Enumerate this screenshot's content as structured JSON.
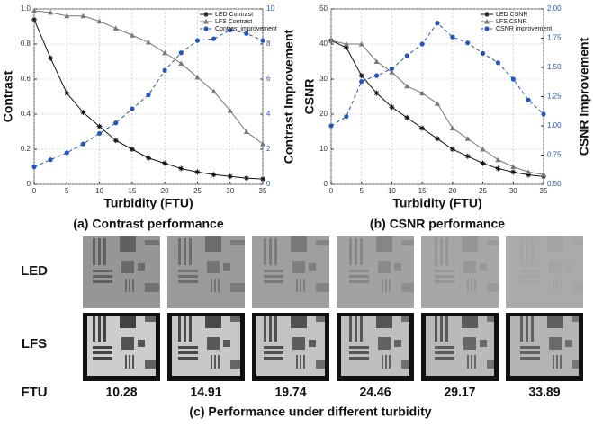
{
  "chart_data": [
    {
      "type": "line",
      "caption": "(a) Contrast performance",
      "x_label": "Turbidity (FTU)",
      "y_label": "Contrast",
      "y2_label": "Contrast Improvement",
      "xlim": [
        0,
        35
      ],
      "xticks": [
        0,
        5,
        10,
        15,
        20,
        25,
        30,
        35
      ],
      "ylim": [
        0,
        1
      ],
      "yticks": [
        0,
        0.2,
        0.4,
        0.6,
        0.8,
        {
          "value": 1,
          "label": "1.0"
        }
      ],
      "y2lim": [
        0,
        10
      ],
      "y2ticks": [
        0,
        2,
        4,
        6,
        8,
        10
      ],
      "grid": true,
      "legend": "top-right",
      "x": [
        0,
        2.5,
        5,
        7.5,
        10,
        12.5,
        15,
        17.5,
        20,
        22.5,
        25,
        27.5,
        30,
        32.5,
        35
      ],
      "series": [
        {
          "name": "LED Contrast",
          "color": "#111111",
          "marker": "star",
          "dash": false,
          "values": [
            0.94,
            0.72,
            0.52,
            0.41,
            0.33,
            0.25,
            0.2,
            0.15,
            0.12,
            0.09,
            0.07,
            0.055,
            0.045,
            0.035,
            0.03
          ]
        },
        {
          "name": "LFS Contrast",
          "color": "#777777",
          "marker": "triangle",
          "dash": false,
          "values": [
            0.99,
            0.98,
            0.96,
            0.96,
            0.93,
            0.89,
            0.85,
            0.81,
            0.75,
            0.69,
            0.61,
            0.53,
            0.42,
            0.3,
            0.23
          ]
        },
        {
          "name": "Contrast improvement",
          "color": "#2457b8",
          "marker": "circle",
          "dash": true,
          "axis": "y2",
          "values": [
            1.0,
            1.4,
            1.8,
            2.3,
            2.9,
            3.5,
            4.3,
            5.1,
            6.5,
            7.5,
            8.2,
            8.3,
            8.8,
            8.6,
            8.2
          ]
        }
      ]
    },
    {
      "type": "line",
      "caption": "(b) CSNR performance",
      "x_label": "Turbidity (FTU)",
      "y_label": "CSNR",
      "y2_label": "CSNR Improvement",
      "xlim": [
        0,
        35
      ],
      "xticks": [
        0,
        5,
        10,
        15,
        20,
        25,
        30,
        35
      ],
      "ylim": [
        0,
        50
      ],
      "yticks": [
        0,
        10,
        20,
        30,
        40,
        50
      ],
      "y2lim": [
        0.5,
        2
      ],
      "y2ticks": [
        {
          "value": 0.5,
          "label": "0.50"
        },
        {
          "value": 0.75,
          "label": "0.75"
        },
        {
          "value": 1,
          "label": "1.00"
        },
        {
          "value": 1.25,
          "label": "1.25"
        },
        {
          "value": 1.5,
          "label": "1.50"
        },
        {
          "value": 1.75,
          "label": "1.75"
        },
        {
          "value": 2,
          "label": "2.00"
        }
      ],
      "grid": true,
      "legend": "top-right",
      "x": [
        0,
        2.5,
        5,
        7.5,
        10,
        12.5,
        15,
        17.5,
        20,
        22.5,
        25,
        27.5,
        30,
        32.5,
        35
      ],
      "series": [
        {
          "name": "LED CSNR",
          "color": "#111111",
          "marker": "star",
          "dash": false,
          "values": [
            41,
            39,
            31,
            26,
            22,
            19,
            16,
            13,
            10,
            8,
            6,
            4.5,
            3.5,
            2.7,
            2.2
          ]
        },
        {
          "name": "LFS CSNR",
          "color": "#777777",
          "marker": "triangle",
          "dash": false,
          "values": [
            41,
            40,
            40,
            35,
            32,
            28,
            26,
            23,
            16,
            13,
            10,
            7,
            5,
            3.5,
            2.8
          ]
        },
        {
          "name": "CSNR improvement",
          "color": "#2457b8",
          "marker": "circle",
          "dash": true,
          "axis": "y2",
          "values": [
            1.0,
            1.08,
            1.38,
            1.43,
            1.49,
            1.6,
            1.7,
            1.88,
            1.76,
            1.71,
            1.62,
            1.54,
            1.4,
            1.22,
            1.1
          ]
        }
      ]
    }
  ],
  "images": {
    "row_labels": [
      "LED",
      "LFS",
      "FTU"
    ],
    "turbidity": [
      "10.28",
      "14.91",
      "19.74",
      "24.46",
      "29.17",
      "33.89"
    ],
    "caption": "(c) Performance under different turbidity"
  }
}
